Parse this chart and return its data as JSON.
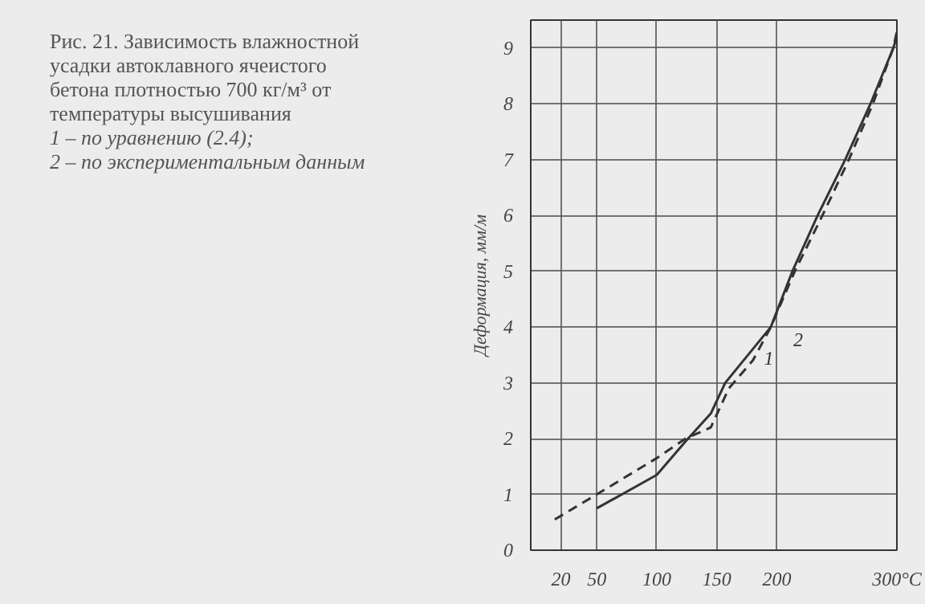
{
  "chart_data": {
    "type": "line",
    "title": "Рис. 21. Зависимость влажностной усадки автоклавного ячеистого бетона плотностью 700 кг/м³ от температуры высушивания",
    "annotations": [
      "1 – по уравнению (2.4);",
      "2 – по экспериментальным данным"
    ],
    "ylabel": "Деформация, мм/м",
    "xlim": [
      -5,
      300
    ],
    "ylim": [
      0,
      9.5
    ],
    "xticks": [
      20,
      50,
      100,
      150,
      200,
      {
        "value": 300,
        "label": "300°C"
      }
    ],
    "yticks": [
      0,
      1,
      2,
      3,
      4,
      5,
      6,
      7,
      8,
      9
    ],
    "grid": true,
    "series": [
      {
        "name": "1",
        "color": "#333333",
        "line_style": "solid",
        "x": [
          50,
          100,
          124,
          145,
          157,
          176,
          195,
          213,
          234,
          257,
          278,
          297,
          300
        ],
        "values": [
          0.75,
          1.35,
          1.95,
          2.45,
          3,
          3.5,
          4,
          5,
          6,
          7,
          8,
          9,
          9.2
        ]
      },
      {
        "name": "2",
        "color": "#333333",
        "line_style": "dashed",
        "x": [
          15,
          50,
          100,
          124,
          145,
          160,
          180,
          195,
          215,
          238,
          260,
          280,
          297,
          300
        ],
        "values": [
          0.55,
          1.0,
          1.65,
          2.0,
          2.2,
          2.9,
          3.4,
          4,
          5,
          6,
          7,
          8,
          9,
          9.3
        ]
      }
    ]
  }
}
